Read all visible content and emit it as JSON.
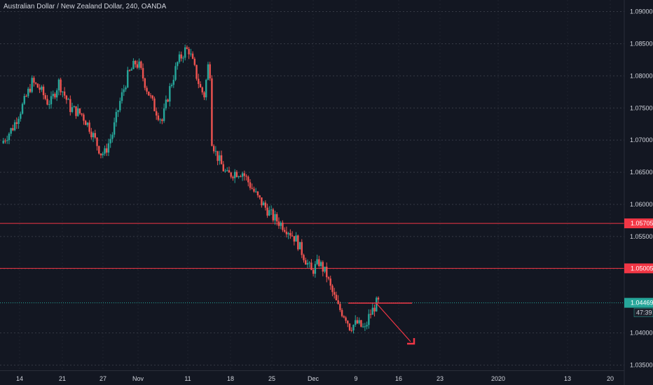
{
  "header": {
    "symbol_title": "Australian Dollar / New Zealand Dollar, 240, OANDA"
  },
  "chart_data": {
    "type": "candlestick",
    "title": "Australian Dollar / New Zealand Dollar, 240, OANDA",
    "xlabel": "",
    "ylabel": "",
    "ylim": [
      1.0343,
      1.0918
    ],
    "grid": true,
    "y_ticks": [
      "1.09000",
      "1.08500",
      "1.08000",
      "1.07500",
      "1.07000",
      "1.06500",
      "1.06000",
      "1.05500",
      "1.05000",
      "1.04000",
      "1.03500"
    ],
    "x_ticks": [
      "14",
      "21",
      "27",
      "Nov",
      "11",
      "18",
      "25",
      "Dec",
      "9",
      "16",
      "23",
      "2020",
      "13",
      "20"
    ],
    "price_path": [
      [
        0,
        1.0695
      ],
      [
        3,
        1.072
      ],
      [
        6,
        1.076
      ],
      [
        8,
        1.079
      ],
      [
        10,
        1.078
      ],
      [
        12,
        1.076
      ],
      [
        13,
        1.076
      ],
      [
        15,
        1.079
      ],
      [
        18,
        1.075
      ],
      [
        21,
        1.074
      ],
      [
        23,
        1.072
      ],
      [
        26,
        1.068
      ],
      [
        27,
        1.068
      ],
      [
        29,
        1.071
      ],
      [
        31,
        1.076
      ],
      [
        33,
        1.08
      ],
      [
        35,
        1.082
      ],
      [
        36,
        1.0815
      ],
      [
        38,
        1.078
      ],
      [
        40,
        1.075
      ],
      [
        42,
        1.073
      ],
      [
        44,
        1.078
      ],
      [
        46,
        1.082
      ],
      [
        48,
        1.084
      ],
      [
        49,
        1.084
      ],
      [
        50,
        1.082
      ],
      [
        51,
        1.08
      ],
      [
        52,
        1.078
      ],
      [
        53,
        1.077
      ],
      [
        54,
        1.0815
      ],
      [
        54.5,
        1.0805
      ],
      [
        55,
        1.07
      ],
      [
        56,
        1.068
      ],
      [
        58,
        1.0655
      ],
      [
        59,
        1.0645
      ],
      [
        61,
        1.065
      ],
      [
        63,
        1.065
      ],
      [
        65,
        1.063
      ],
      [
        67,
        1.061
      ],
      [
        69,
        1.0595
      ],
      [
        71,
        1.058
      ],
      [
        73,
        1.057
      ],
      [
        75,
        1.056
      ],
      [
        77,
        1.0545
      ],
      [
        79,
        1.052
      ],
      [
        81,
        1.0495
      ],
      [
        83,
        1.051
      ],
      [
        85,
        1.049
      ],
      [
        86,
        1.047
      ],
      [
        88,
        1.044
      ],
      [
        90,
        1.0425
      ],
      [
        91,
        1.041
      ],
      [
        93,
        1.0415
      ],
      [
        95,
        1.0405
      ],
      [
        96,
        1.0425
      ],
      [
        98,
        1.0446
      ],
      [
        98.5,
        1.0447
      ]
    ],
    "horizontal_lines": [
      {
        "price": 1.05705,
        "label": "1.05705",
        "color": "#f23645"
      },
      {
        "price": 1.05005,
        "label": "1.05005",
        "color": "#f23645"
      }
    ],
    "last_price": {
      "value": "1.04469",
      "countdown": "47:39",
      "color": "#26a69a"
    },
    "drawings": {
      "trend_line_color": "#f23645",
      "projection_arrow_color": "#f23645"
    },
    "colors": {
      "background": "#131722",
      "up_candle": "#26a69a",
      "down_candle": "#ef5350",
      "grid": "#363a45"
    }
  }
}
